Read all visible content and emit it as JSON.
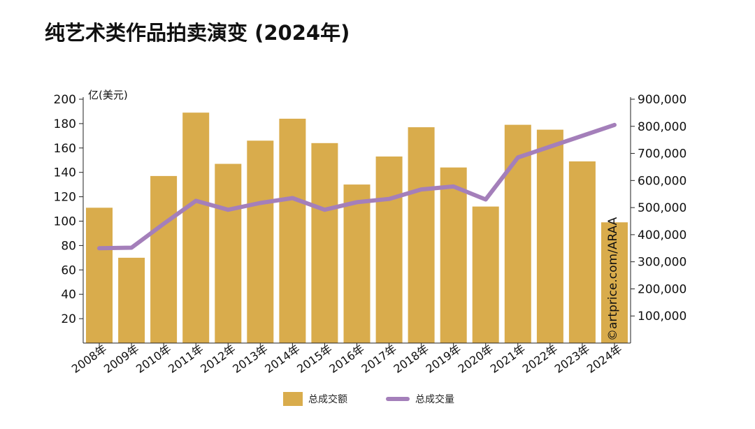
{
  "title": "纯艺术类作品拍卖演变 (2024年)",
  "watermark": "©artprice.com/ARAA",
  "legend": {
    "bar_label": "总成交额",
    "line_label": "总成交量"
  },
  "colors": {
    "bar": "#D9AC4C",
    "line": "#A47FBA"
  },
  "chart_data": {
    "type": "bar",
    "categories": [
      "2008年",
      "2009年",
      "2010年",
      "2011年",
      "2012年",
      "2013年",
      "2014年",
      "2015年",
      "2016年",
      "2017年",
      "2018年",
      "2019年",
      "2020年",
      "2021年",
      "2022年",
      "2023年",
      "2024年"
    ],
    "series": [
      {
        "name": "总成交额",
        "type": "bar",
        "axis": "left",
        "values": [
          111,
          70,
          137,
          189,
          147,
          166,
          184,
          164,
          130,
          153,
          177,
          144,
          112,
          179,
          175,
          149,
          99
        ]
      },
      {
        "name": "总成交量",
        "type": "line",
        "axis": "right",
        "values": [
          350000,
          352000,
          440000,
          525000,
          492000,
          517000,
          535000,
          492000,
          520000,
          532000,
          567000,
          578000,
          530000,
          685000,
          725000,
          765000,
          805000
        ]
      }
    ],
    "y_left": {
      "label": "亿(美元)",
      "ylim": [
        0,
        200
      ],
      "ticks": [
        20,
        40,
        60,
        80,
        100,
        120,
        140,
        160,
        180,
        200
      ]
    },
    "y_right": {
      "ylim": [
        0,
        900000
      ],
      "ticks": [
        100000,
        200000,
        300000,
        400000,
        500000,
        600000,
        700000,
        800000,
        900000
      ],
      "tick_labels": [
        "100,000",
        "200,000",
        "300,000",
        "400,000",
        "500,000",
        "600,000",
        "700,000",
        "800,000",
        "900,000"
      ]
    },
    "grid": false,
    "legend_position": "bottom"
  }
}
